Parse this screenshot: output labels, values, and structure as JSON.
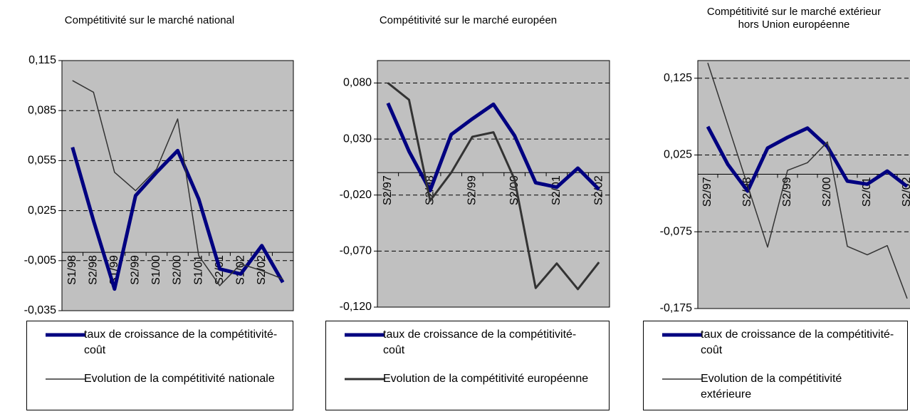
{
  "chart_data": [
    {
      "type": "line",
      "subtitle": "Compétitivité sur le marché national",
      "categories": [
        "S1/98",
        "S2/98",
        "S1/99",
        "S2/99",
        "S1/00",
        "S2/00",
        "S1/01",
        "S2/01",
        "S1/02",
        "S2/02",
        null
      ],
      "series": [
        {
          "name": "taux de croissance de la compétitivité-coût",
          "color": "#000080",
          "line_width": 5,
          "values": [
            0.063,
            0.019,
            -0.022,
            0.034,
            0.048,
            0.061,
            0.032,
            -0.01,
            -0.013,
            0.004,
            -0.018
          ]
        },
        {
          "name": "Evolution de la compétitivité nationale",
          "color": "#333333",
          "line_width": 1.5,
          "values": [
            0.103,
            0.096,
            0.048,
            0.037,
            0.05,
            0.08,
            -0.002,
            -0.02,
            -0.007,
            -0.011,
            -0.016
          ]
        }
      ],
      "ylim": [
        -0.035,
        0.115
      ],
      "yticks": [
        {
          "value": -0.035,
          "label": "-0,035"
        },
        {
          "value": -0.005,
          "label": "-0,005"
        },
        {
          "value": 0.025,
          "label": "0,025"
        },
        {
          "value": 0.055,
          "label": "0,055"
        },
        {
          "value": 0.085,
          "label": "0,085"
        },
        {
          "value": 0.115,
          "label": "0,115"
        }
      ],
      "grid": true,
      "plot_background": "#c0c0c0"
    },
    {
      "type": "line",
      "subtitle": "Compétitivité sur le marché européen",
      "categories": [
        "S2/97",
        null,
        "S2/98",
        null,
        "S2/99",
        null,
        "S2/00",
        null,
        "S2/01",
        null,
        "S2/02"
      ],
      "series": [
        {
          "name": "taux de croissance de la compétitivité-coût",
          "color": "#000080",
          "line_width": 5,
          "values": [
            0.062,
            0.019,
            -0.016,
            0.034,
            0.048,
            0.061,
            0.033,
            -0.009,
            -0.013,
            0.004,
            -0.015
          ]
        },
        {
          "name": "Evolution de la compétitivité européenne",
          "color": "#333333",
          "line_width": 3,
          "values": [
            0.08,
            0.065,
            -0.025,
            0.0,
            0.032,
            0.036,
            -0.006,
            -0.103,
            -0.081,
            -0.104,
            -0.08
          ]
        }
      ],
      "ylim": [
        -0.12,
        0.1
      ],
      "yticks": [
        {
          "value": -0.12,
          "label": "-0,120"
        },
        {
          "value": -0.07,
          "label": "-0,070"
        },
        {
          "value": -0.02,
          "label": "-0,020"
        },
        {
          "value": 0.03,
          "label": "0,030"
        },
        {
          "value": 0.08,
          "label": "0,080"
        }
      ],
      "grid": true,
      "plot_background": "#c0c0c0"
    },
    {
      "type": "line",
      "subtitle": "Compétitivité sur le marché extérieur\nhors Union européenne",
      "categories": [
        "S2/97",
        null,
        "S2/98",
        null,
        "S2/99",
        null,
        "S2/00",
        null,
        "S2/01",
        null,
        "S2/02"
      ],
      "series": [
        {
          "name": "taux de croissance de la compétitivité-coût",
          "color": "#000080",
          "line_width": 5,
          "values": [
            0.062,
            0.013,
            -0.022,
            0.034,
            0.048,
            0.06,
            0.036,
            -0.009,
            -0.013,
            0.004,
            -0.016
          ]
        },
        {
          "name": "Evolution de la compétitivité extérieure",
          "color": "#333333",
          "line_width": 1.5,
          "values": [
            0.145,
            0.065,
            -0.015,
            -0.095,
            0.005,
            0.015,
            0.042,
            -0.094,
            -0.105,
            -0.093,
            -0.162
          ]
        }
      ],
      "ylim": [
        -0.175,
        0.148
      ],
      "yticks": [
        {
          "value": -0.175,
          "label": "-0,175"
        },
        {
          "value": -0.075,
          "label": "-0,075"
        },
        {
          "value": 0.025,
          "label": "0,025"
        },
        {
          "value": 0.125,
          "label": "0,125"
        }
      ],
      "grid": true,
      "plot_background": "#c0c0c0"
    }
  ]
}
